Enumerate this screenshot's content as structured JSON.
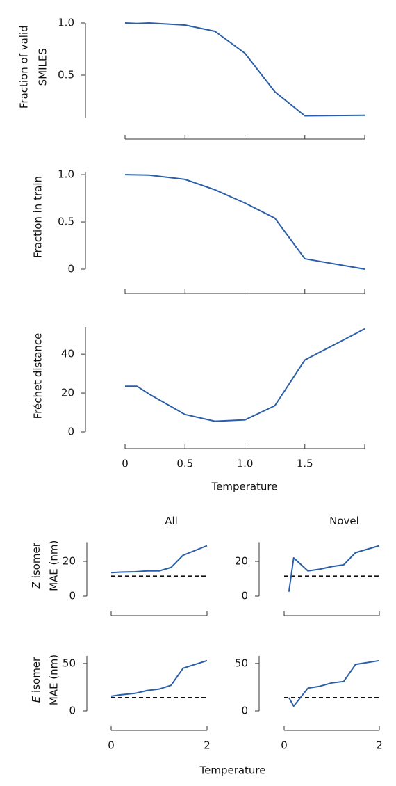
{
  "chart_data": [
    {
      "type": "line",
      "ylabel": [
        "Fraction of valid",
        "SMILES"
      ],
      "x": [
        0,
        0.1,
        0.2,
        0.5,
        0.75,
        1.0,
        1.25,
        1.5,
        2.0
      ],
      "values": [
        1.0,
        0.995,
        1.0,
        0.98,
        0.92,
        0.71,
        0.34,
        0.11,
        0.115
      ],
      "color": "#2a5ea8",
      "xlim": [
        0,
        2
      ],
      "xticks": [
        0,
        0.5,
        1,
        1.5
      ],
      "show_xtick_labels": false,
      "ylim": [
        0.09,
        1.0
      ],
      "yticks": [
        0.5,
        {
          "value": 1,
          "label": "1.0"
        }
      ]
    },
    {
      "type": "line",
      "ylabel": [
        "Fraction in train"
      ],
      "x": [
        0,
        0.2,
        0.5,
        0.75,
        1.0,
        1.25,
        1.5,
        2.0
      ],
      "values": [
        1.0,
        0.995,
        0.95,
        0.84,
        0.7,
        0.54,
        0.11,
        0.0
      ],
      "color": "#2a5ea8",
      "xlim": [
        0,
        2
      ],
      "xticks": [
        0,
        0.5,
        1,
        1.5
      ],
      "show_xtick_labels": false,
      "ylim": [
        0,
        1.03
      ],
      "yticks": [
        0,
        0.5,
        {
          "value": 1,
          "label": "1.0"
        }
      ]
    },
    {
      "type": "line",
      "ylabel": [
        "Fréchet distance"
      ],
      "xlabel": "Temperature",
      "x": [
        0,
        0.1,
        0.2,
        0.5,
        0.75,
        1.0,
        1.25,
        1.5,
        2.0
      ],
      "values": [
        23.5,
        23.5,
        19.5,
        9,
        5.5,
        6.2,
        13.5,
        37,
        53
      ],
      "color": "#2a5ea8",
      "xlim": [
        0,
        2
      ],
      "xticks": [
        0,
        0.5,
        {
          "value": 1,
          "label": "1.0"
        },
        1.5
      ],
      "show_xtick_labels": true,
      "ylim": [
        0,
        54
      ],
      "yticks": [
        0,
        20,
        40
      ]
    },
    {
      "type": "line",
      "title": "All",
      "ylabel": [
        "Z isomer",
        "MAE (nm)"
      ],
      "x": [
        0,
        0.2,
        0.5,
        0.75,
        1.0,
        1.25,
        1.5,
        2.0
      ],
      "values": [
        13.5,
        13.8,
        14,
        14.5,
        14.5,
        16.5,
        23.5,
        29
      ],
      "color": "#2a5ea8",
      "hline": 11.5,
      "xlim": [
        0,
        2
      ],
      "xticks": [
        0,
        2
      ],
      "show_xtick_labels": false,
      "ylim": [
        0,
        31
      ],
      "yticks": [
        0,
        20
      ]
    },
    {
      "type": "line",
      "title": "Novel",
      "x": [
        0.1,
        0.2,
        0.5,
        0.75,
        1.0,
        1.25,
        1.5,
        2.0
      ],
      "values": [
        2.5,
        22,
        14.5,
        15.5,
        17,
        18,
        25,
        29
      ],
      "color": "#2a5ea8",
      "hline": 11.5,
      "xlim": [
        0,
        2
      ],
      "xticks": [
        0,
        2
      ],
      "show_xtick_labels": false,
      "ylim": [
        0,
        31
      ],
      "yticks": [
        0,
        20
      ]
    },
    {
      "type": "line",
      "ylabel": [
        "E isomer",
        "MAE (nm)"
      ],
      "xlabel": "Temperature",
      "x": [
        0,
        0.2,
        0.5,
        0.75,
        1.0,
        1.25,
        1.5,
        2.0
      ],
      "values": [
        15.5,
        17,
        18.5,
        21.5,
        23,
        27,
        45,
        53
      ],
      "color": "#2a5ea8",
      "hline": 14,
      "xlim": [
        0,
        2
      ],
      "xticks": [
        0,
        2
      ],
      "show_xtick_labels": true,
      "ylim": [
        0,
        58
      ],
      "yticks": [
        0,
        50
      ]
    },
    {
      "type": "line",
      "x": [
        0.1,
        0.2,
        0.5,
        0.75,
        1.0,
        1.25,
        1.5,
        2.0
      ],
      "values": [
        14,
        5,
        24,
        26,
        29.5,
        31,
        49,
        53
      ],
      "color": "#2a5ea8",
      "hline": 14,
      "xlim": [
        0,
        2
      ],
      "xticks": [
        0,
        2
      ],
      "show_xtick_labels": true,
      "ylim": [
        0,
        58
      ],
      "yticks": [
        0,
        50
      ]
    }
  ]
}
